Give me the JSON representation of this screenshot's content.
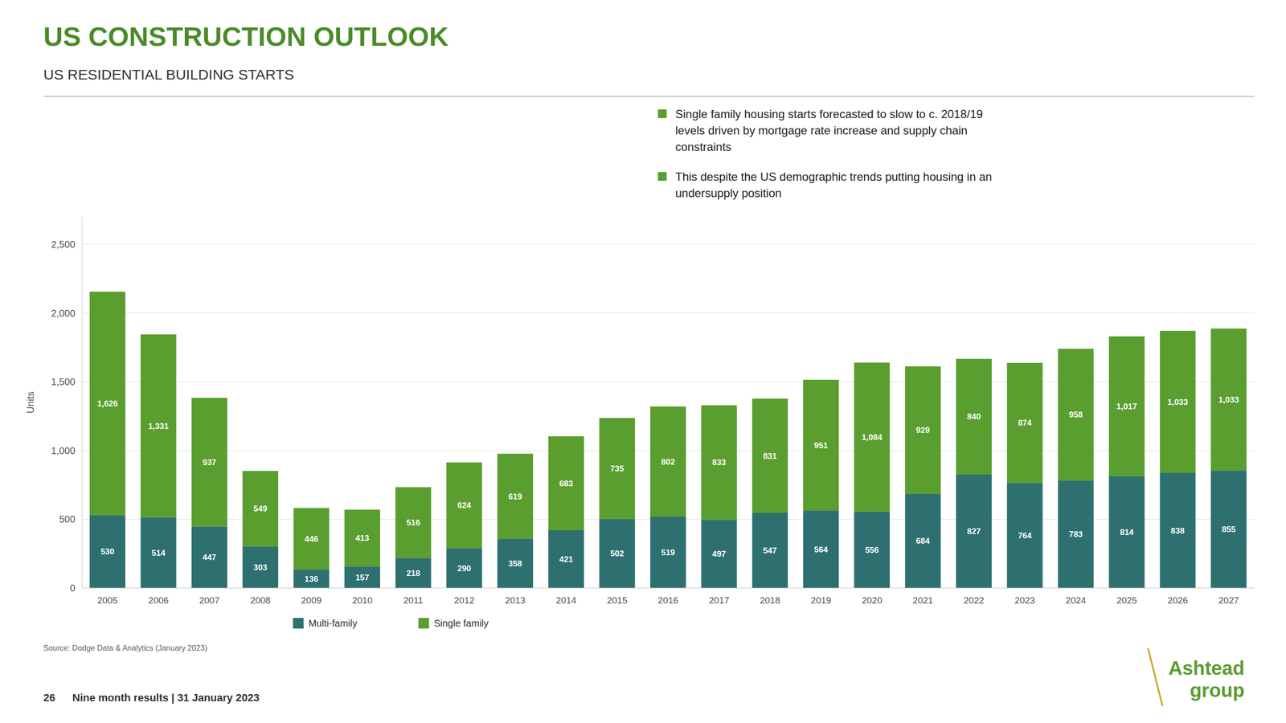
{
  "chart_data": {
    "type": "bar",
    "stacked": true,
    "title": "US CONSTRUCTION OUTLOOK",
    "subtitle": "US RESIDENTIAL BUILDING STARTS",
    "y_label": "Units",
    "categories": [
      2005,
      2006,
      2007,
      2008,
      2009,
      2010,
      2011,
      2012,
      2013,
      2014,
      2015,
      2016,
      2017,
      2018,
      2019,
      2020,
      2021,
      2022,
      2023,
      2024,
      2025,
      2026,
      2027
    ],
    "series": [
      {
        "name": "Multi-family",
        "color": "#2e7070",
        "values": [
          530,
          514,
          447,
          303,
          136,
          157,
          218,
          290,
          358,
          421,
          502,
          519,
          497,
          547,
          564,
          556,
          684,
          827,
          764,
          783,
          814,
          838,
          855
        ]
      },
      {
        "name": "Single family",
        "color": "#5a9e2f",
        "values": [
          1626,
          1331,
          937,
          549,
          446,
          413,
          516,
          624,
          619,
          683,
          735,
          802,
          833,
          831,
          951,
          1084,
          929,
          840,
          874,
          958,
          1017,
          1033,
          1033
        ],
        "value_labels": [
          "1,626",
          "1,331",
          "937",
          "549",
          "446",
          "413",
          "516",
          "624",
          "619",
          "683",
          "735",
          "802",
          "833",
          "831",
          "951",
          "1,084",
          "929",
          "840",
          "874",
          "958",
          "1,017",
          "1,033",
          "1,033"
        ]
      }
    ],
    "ylim": [
      0,
      2700
    ],
    "yticks": [
      0,
      500,
      {
        "value": 1000,
        "label": "1,000"
      },
      {
        "value": 1500,
        "label": "1,500"
      },
      {
        "value": 2000,
        "label": "2,000"
      },
      {
        "value": 2500,
        "label": "2,500"
      }
    ],
    "grid": true,
    "data_labels": true,
    "legend": "bottom",
    "annotations": [
      "Single family housing starts forecasted to slow to c. 2018/19\nlevels driven by mortgage rate increase and supply chain\nconstraints",
      "This despite the US demographic trends putting housing in an\nundersupply position",
      "Source: Dodge Data & Analytics (January 2023)",
      "26",
      "Nine month results | 31 January 2023",
      "Ashtead\ngroup"
    ]
  }
}
